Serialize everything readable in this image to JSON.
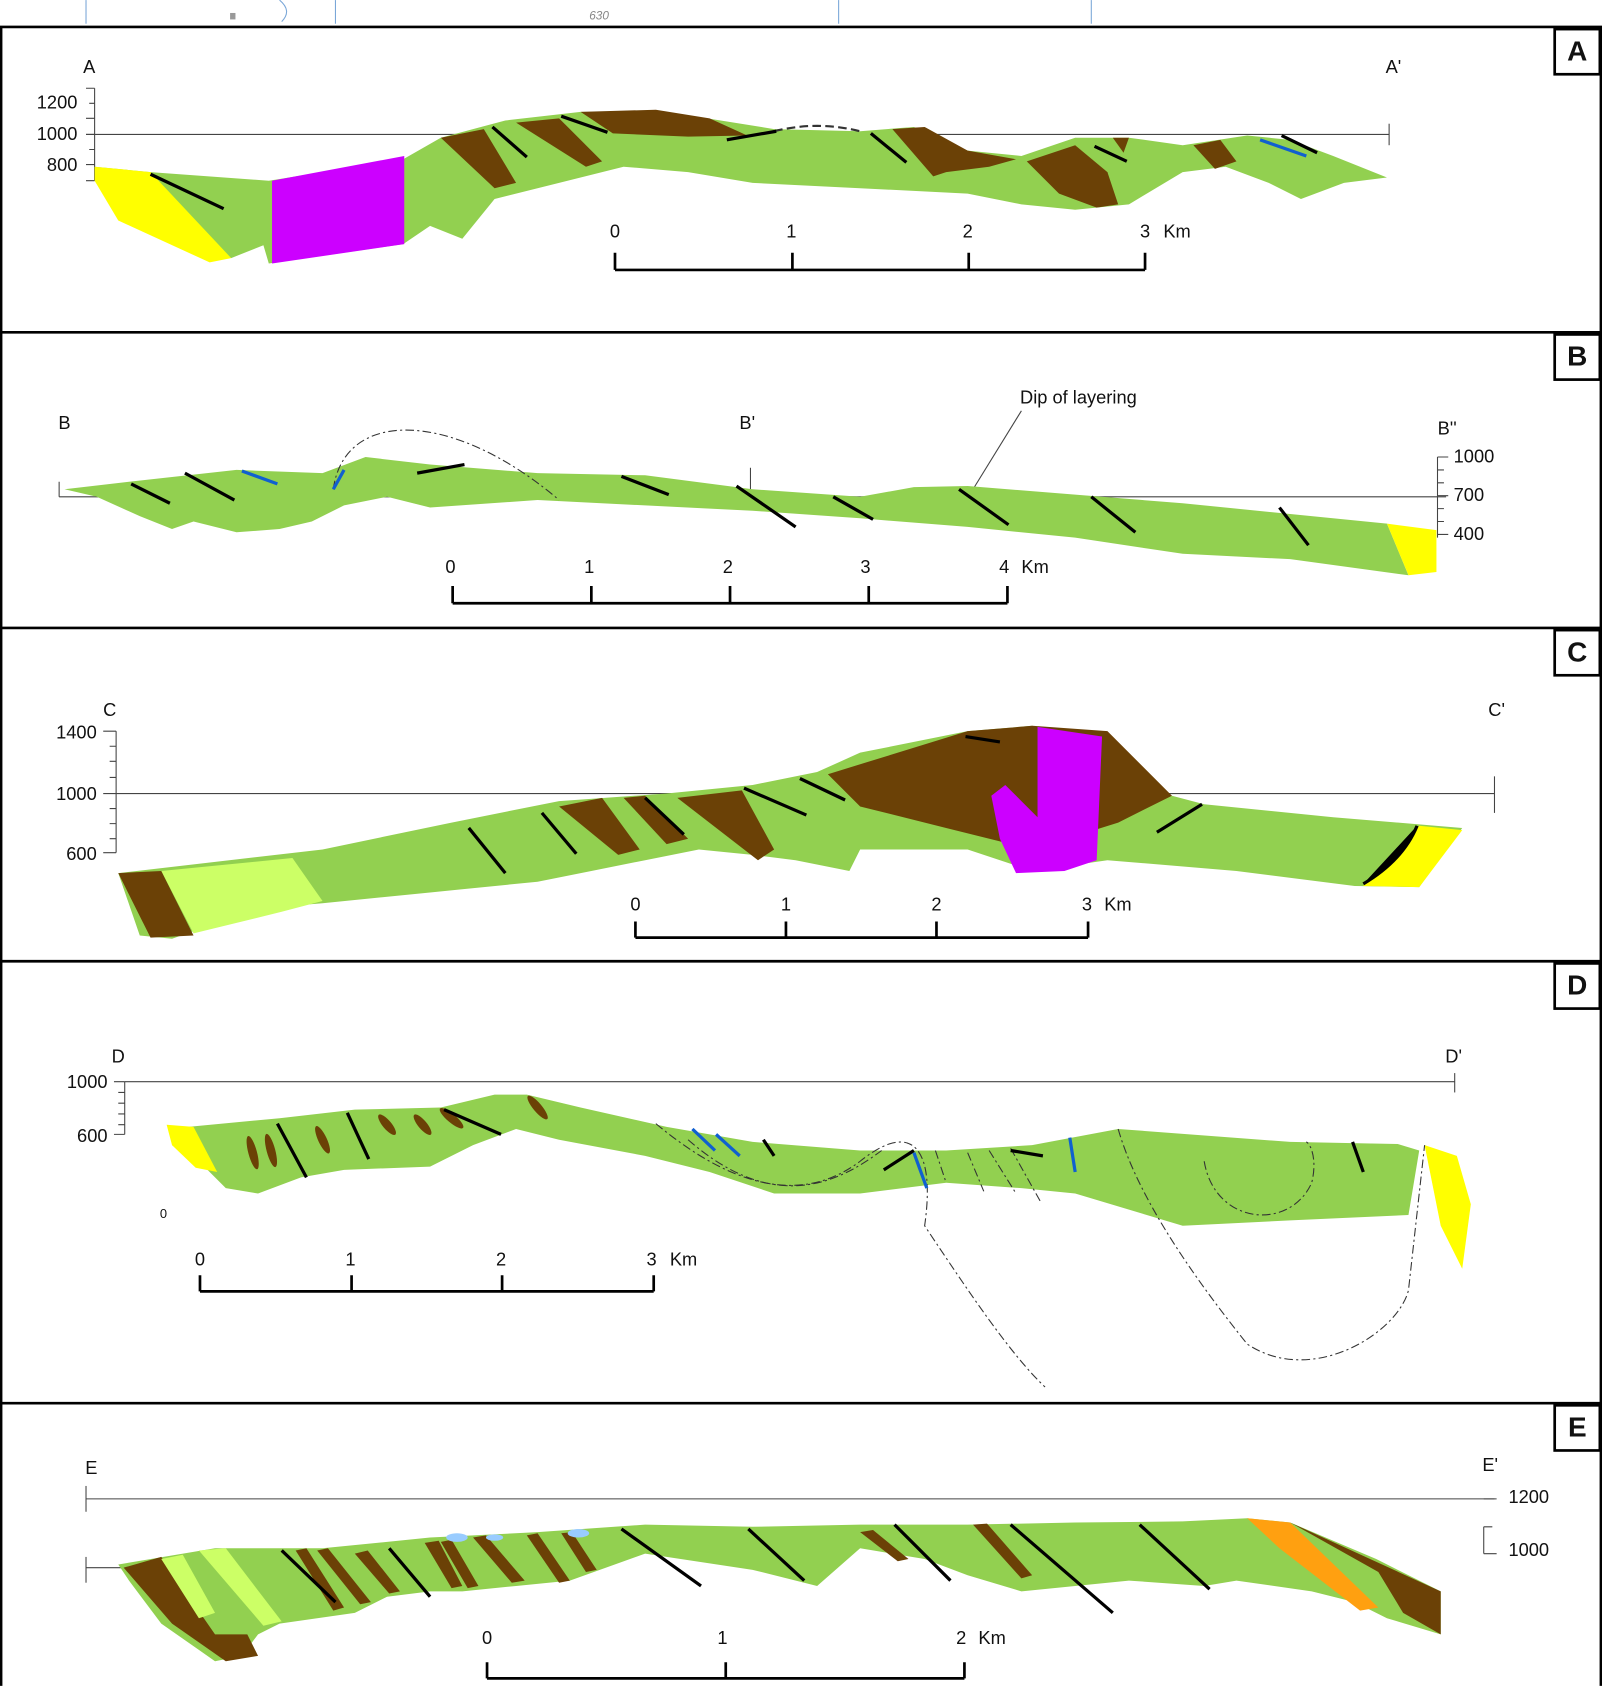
{
  "top_strip": {
    "label": "630"
  },
  "panels": [
    {
      "letter": "A",
      "start": "A",
      "end": "A'",
      "elevations": [
        "1200",
        "1000",
        "800"
      ],
      "scale": [
        "0",
        "1",
        "2",
        "3"
      ],
      "unit": "Km"
    },
    {
      "letter": "B",
      "start": "B",
      "middle": "B'",
      "end": "B''",
      "annotation": "Dip of layering",
      "elevations": [
        "1000",
        "700",
        "400"
      ],
      "scale": [
        "0",
        "1",
        "2",
        "3",
        "4"
      ],
      "unit": "Km"
    },
    {
      "letter": "C",
      "start": "C",
      "end": "C'",
      "elevations": [
        "1400",
        "1000",
        "600"
      ],
      "scale": [
        "0",
        "1",
        "2",
        "3"
      ],
      "unit": "Km"
    },
    {
      "letter": "D",
      "start": "D",
      "end": "D'",
      "elevations": [
        "1000",
        "600"
      ],
      "note": "0",
      "scale": [
        "0",
        "1",
        "2",
        "3"
      ],
      "unit": "Km"
    },
    {
      "letter": "E",
      "start": "E",
      "end": "E'",
      "elevations": [
        "1200",
        "1000"
      ],
      "scale": [
        "0",
        "1",
        "2"
      ],
      "unit": "Km"
    }
  ]
}
